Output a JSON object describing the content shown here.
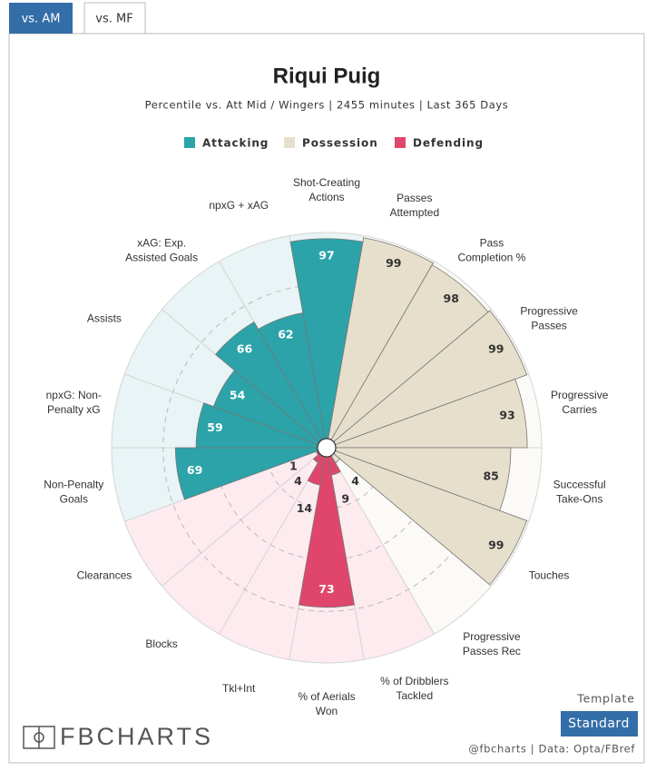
{
  "chart_data": {
    "type": "pizza",
    "tabs": [
      "vs. AM",
      "vs. MF"
    ],
    "title": "Riqui Puig",
    "subtitle": "Percentile vs. Att Mid / Wingers | 2455 minutes | Last 365 Days",
    "series": [
      {
        "name": "Attacking",
        "color": "#2ba3a9",
        "background": "#e8f4f5"
      },
      {
        "name": "Possession",
        "color": "#e6dfcb",
        "background": "#fbfaf6"
      },
      {
        "name": "Defending",
        "color": "#e0466b",
        "background": "#fdebef"
      }
    ],
    "categories": [
      [
        "Shot-Creating",
        "Actions"
      ],
      [
        "Passes",
        "Attempted"
      ],
      [
        "Pass",
        "Completion %"
      ],
      [
        "Progressive",
        "Passes"
      ],
      [
        "Progressive",
        "Carries"
      ],
      [
        "Successful",
        "Take-Ons"
      ],
      [
        "Touches"
      ],
      [
        "Progressive",
        "Passes Rec"
      ],
      [
        "% of Dribblers",
        "Tackled"
      ],
      [
        "% of Aerials",
        "Won"
      ],
      [
        "Tkl+Int"
      ],
      [
        "Blocks"
      ],
      [
        "Clearances"
      ],
      [
        "Non-Penalty",
        "Goals"
      ],
      [
        "npxG: Non-",
        "Penalty xG"
      ],
      [
        "Assists"
      ],
      [
        "xAG: Exp.",
        "Assisted Goals"
      ],
      [
        "npxG + xAG"
      ]
    ],
    "values": [
      97,
      99,
      98,
      99,
      93,
      85,
      99,
      4,
      9,
      73,
      14,
      4,
      1,
      69,
      59,
      54,
      66,
      62
    ],
    "groups": [
      0,
      1,
      1,
      1,
      1,
      1,
      1,
      1,
      2,
      2,
      2,
      2,
      2,
      0,
      0,
      0,
      0,
      0
    ],
    "rlim": [
      0,
      100
    ],
    "rticks": [
      25,
      50,
      75
    ],
    "template_label": "Template",
    "template_button": "Standard",
    "logo": "FBCHARTS",
    "credit": "@fbcharts | Data: Opta/FBref"
  }
}
